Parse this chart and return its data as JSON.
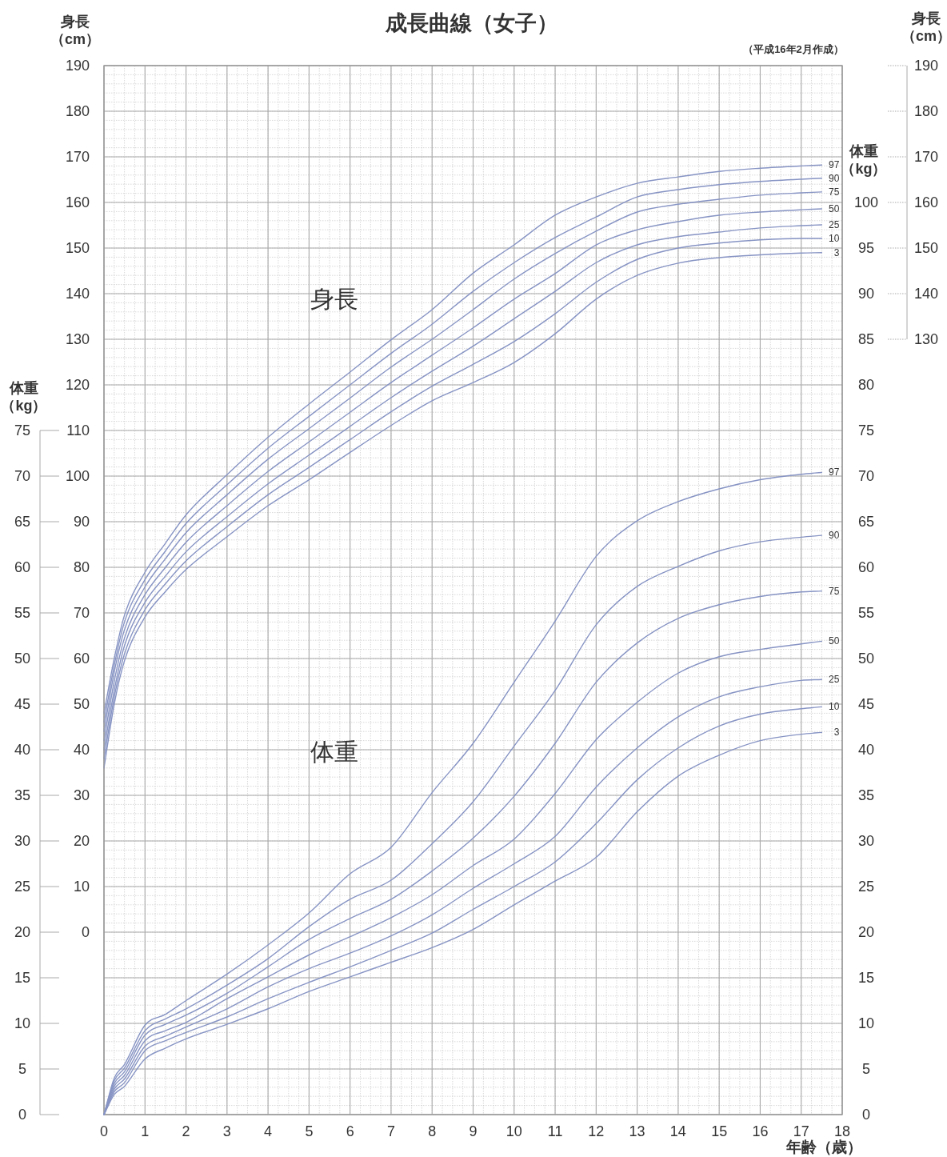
{
  "chart_data": [
    {
      "type": "line",
      "title": "成長曲線（女子）",
      "xlabel": "年齢（歳）",
      "ylabel": "身長（cm）",
      "y2label": "身長（cm）",
      "annotations": [
        "（平成16年2月作成）",
        "身長"
      ],
      "x": [
        0,
        0.25,
        0.5,
        1,
        1.5,
        2,
        3,
        4,
        5,
        6,
        7,
        8,
        9,
        10,
        11,
        12,
        13,
        14,
        15,
        16,
        17,
        17.5
      ],
      "xlim": [
        0,
        18
      ],
      "xticks": [
        0,
        1,
        2,
        3,
        4,
        5,
        6,
        7,
        8,
        9,
        10,
        11,
        12,
        13,
        14,
        15,
        16,
        17,
        18
      ],
      "ylim": [
        -40,
        190
      ],
      "yticks": [
        0,
        10,
        20,
        30,
        40,
        50,
        60,
        70,
        80,
        90,
        100,
        110,
        120,
        130,
        140,
        150,
        160,
        170,
        180,
        190
      ],
      "y2lim": [
        -40,
        190
      ],
      "y2ticks": [
        130,
        140,
        150,
        160,
        170,
        180,
        190
      ],
      "grid": true,
      "series": [
        {
          "name": "3",
          "color": "#8794c4",
          "values": [
            36,
            50,
            59.5,
            69.1,
            74.7,
            79.5,
            86.7,
            93.5,
            99.2,
            105.2,
            111.1,
            116.5,
            120.5,
            124.9,
            131.2,
            138.8,
            144,
            146.7,
            147.9,
            148.5,
            148.9,
            149
          ]
        },
        {
          "name": "10",
          "color": "#8794c4",
          "values": [
            38,
            51.5,
            61,
            70.7,
            76.4,
            81.4,
            88.9,
            95.9,
            101.9,
            108,
            114.1,
            119.7,
            124.5,
            129.5,
            135.6,
            142.5,
            147.5,
            150,
            151.1,
            151.8,
            152.1,
            152.1
          ]
        },
        {
          "name": "25",
          "color": "#8794c4",
          "values": [
            40,
            53,
            62.8,
            72.3,
            78.1,
            83.4,
            91.1,
            98.3,
            104.6,
            110.9,
            117.2,
            123,
            128.5,
            134.5,
            140.5,
            146.8,
            150.7,
            152.5,
            153.5,
            154.4,
            154.9,
            155.1
          ]
        },
        {
          "name": "50",
          "color": "#8794c4",
          "values": [
            42,
            55,
            64.5,
            74,
            80,
            85.5,
            93.5,
            101,
            107.5,
            114,
            120.5,
            126.5,
            132.5,
            138.8,
            144.4,
            150.7,
            154,
            155.8,
            157.2,
            157.9,
            158.4,
            158.6
          ]
        },
        {
          "name": "75",
          "color": "#8794c4",
          "values": [
            44,
            57,
            66.3,
            75.7,
            81.9,
            87.6,
            95.9,
            103.7,
            110.4,
            117.1,
            123.9,
            130,
            136.5,
            143.2,
            148.8,
            153.7,
            157.9,
            159.6,
            160.7,
            161.6,
            162.1,
            162.3
          ]
        },
        {
          "name": "90",
          "color": "#8794c4",
          "values": [
            46,
            58.5,
            68,
            77.3,
            83.6,
            89.6,
            98.1,
            106.1,
            113.1,
            120,
            126.9,
            133.3,
            140.5,
            146.8,
            152.3,
            156.8,
            161.2,
            162.8,
            163.9,
            164.6,
            165.1,
            165.3
          ]
        },
        {
          "name": "97",
          "color": "#8794c4",
          "values": [
            48,
            60,
            69.5,
            78.9,
            85.3,
            91.5,
            100.3,
            108.5,
            115.8,
            122.8,
            129.9,
            136.5,
            144.5,
            150.7,
            157.2,
            161.2,
            164.2,
            165.6,
            166.8,
            167.5,
            168,
            168.2
          ]
        }
      ]
    },
    {
      "type": "line",
      "ylabel": "体重（kg）",
      "y2label": "体重（kg）",
      "annotations": [
        "体重"
      ],
      "x": [
        0,
        0.25,
        0.5,
        1,
        1.5,
        2,
        3,
        4,
        5,
        6,
        7,
        8,
        9,
        10,
        11,
        12,
        13,
        14,
        15,
        16,
        17,
        17.5
      ],
      "xlim": [
        0,
        18
      ],
      "tick_labels": "y",
      "ylim": [
        0,
        115
      ],
      "yticks": [
        0,
        5,
        10,
        15,
        20,
        25,
        30,
        35,
        40,
        45,
        50,
        55,
        60,
        65,
        70,
        75
      ],
      "y2lim": [
        0,
        115
      ],
      "y2ticks": [
        0,
        5,
        10,
        15,
        20,
        25,
        30,
        35,
        40,
        45,
        50,
        55,
        60,
        65,
        70,
        75,
        80,
        85,
        90,
        95,
        100
      ],
      "series": [
        {
          "name": "3",
          "color": "#8794c4",
          "values": [
            0,
            2.2,
            3.1,
            6.1,
            7.3,
            8.3,
            9.9,
            11.6,
            13.5,
            15.1,
            16.7,
            18.3,
            20.3,
            23,
            25.6,
            28.2,
            33.2,
            37.1,
            39.4,
            41,
            41.7,
            41.9
          ]
        },
        {
          "name": "10",
          "color": "#8794c4",
          "values": [
            0,
            2.5,
            3.5,
            7,
            8.1,
            9,
            10.7,
            12.7,
            14.5,
            16.2,
            18,
            19.9,
            22.5,
            25,
            27.7,
            31.9,
            36.7,
            40.2,
            42.6,
            43.9,
            44.5,
            44.7
          ]
        },
        {
          "name": "25",
          "color": "#8794c4",
          "values": [
            0,
            2.8,
            3.9,
            7.5,
            8.6,
            9.6,
            11.6,
            14,
            16,
            17.7,
            19.6,
            21.9,
            24.8,
            27.5,
            30.5,
            35.9,
            40.2,
            43.6,
            45.8,
            46.9,
            47.6,
            47.7
          ]
        },
        {
          "name": "50",
          "color": "#8794c4",
          "values": [
            0,
            3.1,
            4.3,
            8.1,
            9.2,
            10.1,
            12.7,
            15.1,
            17.5,
            19.5,
            21.6,
            24.1,
            27.3,
            30.2,
            35.2,
            41.1,
            45.2,
            48.4,
            50.2,
            51,
            51.6,
            51.9
          ]
        },
        {
          "name": "75",
          "color": "#8794c4",
          "values": [
            0,
            3.4,
            4.7,
            8.7,
            9.9,
            10.9,
            13.3,
            16.2,
            19.2,
            21.5,
            23.6,
            26.7,
            30.3,
            34.9,
            40.7,
            47.4,
            51.7,
            54.4,
            55.9,
            56.8,
            57.3,
            57.4
          ]
        },
        {
          "name": "90",
          "color": "#8794c4",
          "values": [
            0,
            3.7,
            5.1,
            9.2,
            10.5,
            11.6,
            14.2,
            17.1,
            20.6,
            23.6,
            25.7,
            29.7,
            34.3,
            40.4,
            46.5,
            53.7,
            57.9,
            60.1,
            61.8,
            62.8,
            63.3,
            63.5
          ]
        },
        {
          "name": "97",
          "color": "#8794c4",
          "values": [
            0,
            4,
            5.5,
            9.8,
            11,
            12.5,
            15.4,
            18.6,
            22.1,
            26.4,
            29.3,
            35.3,
            40.7,
            47.4,
            54.1,
            61.2,
            65.1,
            67.2,
            68.6,
            69.6,
            70.2,
            70.4
          ]
        }
      ]
    }
  ]
}
